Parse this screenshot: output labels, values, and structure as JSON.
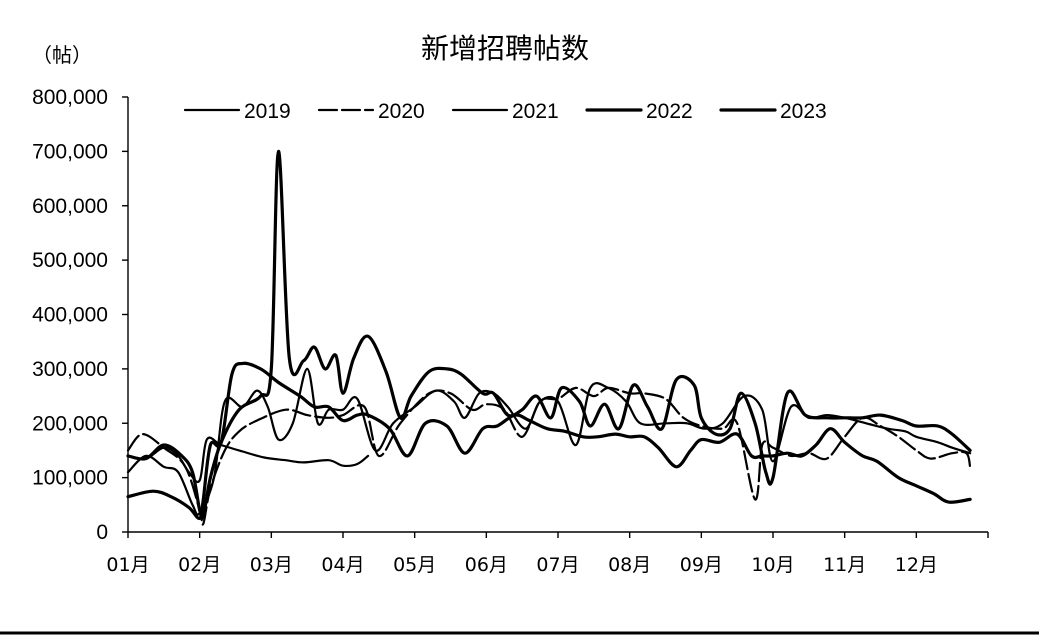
{
  "chart_data": {
    "type": "line",
    "title": "新增招聘帖数",
    "ylabel": "（帖）",
    "xlabel": "",
    "ylim": [
      0,
      800000
    ],
    "yticks": [
      0,
      100000,
      200000,
      300000,
      400000,
      500000,
      600000,
      700000,
      800000
    ],
    "ytick_labels": [
      "0",
      "100,000",
      "200,000",
      "300,000",
      "400,000",
      "500,000",
      "600,000",
      "700,000",
      "800,000"
    ],
    "xlim": [
      0,
      12
    ],
    "months": [
      {
        "label": "01月",
        "x": 0
      },
      {
        "label": "02月",
        "x": 1
      },
      {
        "label": "03月",
        "x": 2
      },
      {
        "label": "04月",
        "x": 3
      },
      {
        "label": "05月",
        "x": 4
      },
      {
        "label": "06月",
        "x": 5
      },
      {
        "label": "07月",
        "x": 6
      },
      {
        "label": "08月",
        "x": 7
      },
      {
        "label": "09月",
        "x": 8
      },
      {
        "label": "10月",
        "x": 9
      },
      {
        "label": "11月",
        "x": 10
      },
      {
        "label": "12月",
        "x": 11
      }
    ],
    "legend_position": "top",
    "grid": false,
    "series": [
      {
        "name": "2019",
        "stroke_width": 2.2,
        "dash": "",
        "points": [
          [
            0.0,
            140000
          ],
          [
            0.25,
            135000
          ],
          [
            0.5,
            155000
          ],
          [
            0.7,
            140000
          ],
          [
            0.85,
            110000
          ],
          [
            1.0,
            95000
          ],
          [
            1.1,
            170000
          ],
          [
            1.3,
            160000
          ],
          [
            1.6,
            148000
          ],
          [
            1.9,
            137000
          ],
          [
            2.2,
            132000
          ],
          [
            2.45,
            128000
          ],
          [
            2.8,
            132000
          ],
          [
            3.0,
            122000
          ],
          [
            3.2,
            125000
          ],
          [
            3.35,
            140000
          ]
        ]
      },
      {
        "name": "2020",
        "stroke_width": 2.2,
        "dash": "18 5",
        "points": [
          [
            0.0,
            150000
          ],
          [
            0.2,
            180000
          ],
          [
            0.5,
            155000
          ],
          [
            0.8,
            120000
          ],
          [
            1.0,
            40000
          ],
          [
            1.05,
            15000
          ],
          [
            1.15,
            80000
          ],
          [
            1.35,
            150000
          ],
          [
            1.55,
            185000
          ],
          [
            1.8,
            205000
          ],
          [
            2.2,
            225000
          ],
          [
            2.5,
            215000
          ],
          [
            2.8,
            210000
          ],
          [
            3.0,
            215000
          ],
          [
            3.3,
            230000
          ],
          [
            3.5,
            140000
          ],
          [
            3.8,
            200000
          ],
          [
            4.2,
            255000
          ],
          [
            4.5,
            255000
          ],
          [
            4.8,
            225000
          ],
          [
            5.0,
            235000
          ],
          [
            5.25,
            225000
          ],
          [
            5.5,
            175000
          ],
          [
            5.75,
            240000
          ],
          [
            6.0,
            245000
          ],
          [
            6.25,
            265000
          ],
          [
            6.5,
            250000
          ],
          [
            6.7,
            265000
          ],
          [
            7.0,
            255000
          ],
          [
            7.2,
            255000
          ],
          [
            7.5,
            245000
          ],
          [
            7.75,
            210000
          ],
          [
            8.0,
            195000
          ],
          [
            8.3,
            190000
          ],
          [
            8.5,
            200000
          ],
          [
            8.75,
            60000
          ],
          [
            8.85,
            160000
          ],
          [
            9.0,
            155000
          ],
          [
            9.25,
            140000
          ],
          [
            9.5,
            145000
          ],
          [
            9.75,
            135000
          ],
          [
            10.0,
            175000
          ],
          [
            10.25,
            210000
          ],
          [
            10.5,
            195000
          ],
          [
            10.75,
            175000
          ],
          [
            11.0,
            150000
          ],
          [
            11.2,
            135000
          ],
          [
            11.5,
            145000
          ],
          [
            11.7,
            145000
          ],
          [
            11.75,
            120000
          ]
        ]
      },
      {
        "name": "2021",
        "stroke_width": 2.2,
        "dash": "",
        "points": [
          [
            0.0,
            110000
          ],
          [
            0.25,
            140000
          ],
          [
            0.5,
            120000
          ],
          [
            0.7,
            110000
          ],
          [
            0.9,
            50000
          ],
          [
            1.0,
            35000
          ],
          [
            1.2,
            100000
          ],
          [
            1.35,
            240000
          ],
          [
            1.6,
            230000
          ],
          [
            1.8,
            260000
          ],
          [
            1.95,
            230000
          ],
          [
            2.1,
            170000
          ],
          [
            2.3,
            200000
          ],
          [
            2.5,
            300000
          ],
          [
            2.65,
            200000
          ],
          [
            2.8,
            225000
          ],
          [
            3.0,
            225000
          ],
          [
            3.2,
            245000
          ],
          [
            3.45,
            150000
          ],
          [
            3.7,
            200000
          ],
          [
            4.0,
            230000
          ],
          [
            4.3,
            260000
          ],
          [
            4.55,
            240000
          ],
          [
            4.7,
            210000
          ],
          [
            4.9,
            255000
          ],
          [
            5.1,
            255000
          ],
          [
            5.3,
            230000
          ],
          [
            5.55,
            190000
          ],
          [
            5.75,
            240000
          ],
          [
            6.0,
            240000
          ],
          [
            6.25,
            160000
          ],
          [
            6.45,
            265000
          ],
          [
            6.7,
            265000
          ],
          [
            6.95,
            240000
          ],
          [
            7.15,
            200000
          ],
          [
            7.5,
            200000
          ],
          [
            7.8,
            200000
          ],
          [
            8.05,
            190000
          ],
          [
            8.3,
            200000
          ],
          [
            8.6,
            250000
          ],
          [
            8.85,
            225000
          ],
          [
            9.0,
            130000
          ],
          [
            9.25,
            230000
          ],
          [
            9.5,
            210000
          ],
          [
            9.75,
            215000
          ],
          [
            10.0,
            210000
          ],
          [
            10.3,
            200000
          ],
          [
            10.6,
            190000
          ],
          [
            10.85,
            185000
          ],
          [
            11.0,
            175000
          ],
          [
            11.3,
            165000
          ],
          [
            11.5,
            155000
          ],
          [
            11.75,
            145000
          ]
        ]
      },
      {
        "name": "2022",
        "stroke_width": 3.2,
        "dash": "",
        "points": [
          [
            0.0,
            140000
          ],
          [
            0.25,
            135000
          ],
          [
            0.5,
            160000
          ],
          [
            0.75,
            140000
          ],
          [
            0.9,
            110000
          ],
          [
            1.0,
            40000
          ],
          [
            1.05,
            30000
          ],
          [
            1.15,
            100000
          ],
          [
            1.3,
            165000
          ],
          [
            1.55,
            225000
          ],
          [
            1.85,
            250000
          ],
          [
            2.0,
            300000
          ],
          [
            2.1,
            700000
          ],
          [
            2.25,
            320000
          ],
          [
            2.45,
            315000
          ],
          [
            2.6,
            340000
          ],
          [
            2.75,
            300000
          ],
          [
            2.9,
            325000
          ],
          [
            3.0,
            255000
          ],
          [
            3.15,
            320000
          ],
          [
            3.35,
            360000
          ],
          [
            3.6,
            295000
          ],
          [
            3.8,
            210000
          ],
          [
            3.95,
            250000
          ],
          [
            4.2,
            295000
          ],
          [
            4.45,
            300000
          ],
          [
            4.65,
            290000
          ],
          [
            4.95,
            255000
          ],
          [
            5.1,
            255000
          ],
          [
            5.3,
            215000
          ],
          [
            5.5,
            225000
          ],
          [
            5.7,
            250000
          ],
          [
            5.9,
            210000
          ],
          [
            6.05,
            265000
          ],
          [
            6.3,
            240000
          ],
          [
            6.45,
            195000
          ],
          [
            6.65,
            235000
          ],
          [
            6.85,
            190000
          ],
          [
            7.05,
            270000
          ],
          [
            7.25,
            230000
          ],
          [
            7.45,
            190000
          ],
          [
            7.65,
            280000
          ],
          [
            7.9,
            270000
          ],
          [
            8.0,
            210000
          ],
          [
            8.2,
            180000
          ],
          [
            8.4,
            190000
          ],
          [
            8.55,
            255000
          ],
          [
            8.75,
            200000
          ],
          [
            8.9,
            110000
          ],
          [
            9.0,
            100000
          ],
          [
            9.2,
            255000
          ],
          [
            9.45,
            215000
          ],
          [
            9.75,
            210000
          ],
          [
            10.0,
            210000
          ],
          [
            10.25,
            210000
          ],
          [
            10.5,
            215000
          ],
          [
            10.8,
            205000
          ],
          [
            11.0,
            195000
          ],
          [
            11.3,
            195000
          ],
          [
            11.5,
            180000
          ],
          [
            11.75,
            150000
          ]
        ]
      },
      {
        "name": "2023",
        "stroke_width": 3.2,
        "dash": "",
        "points": [
          [
            0.0,
            65000
          ],
          [
            0.35,
            75000
          ],
          [
            0.6,
            65000
          ],
          [
            0.85,
            45000
          ],
          [
            1.0,
            25000
          ],
          [
            1.05,
            60000
          ],
          [
            1.15,
            160000
          ],
          [
            1.3,
            165000
          ],
          [
            1.45,
            290000
          ],
          [
            1.6,
            310000
          ],
          [
            1.85,
            300000
          ],
          [
            2.1,
            275000
          ],
          [
            2.4,
            250000
          ],
          [
            2.6,
            230000
          ],
          [
            2.8,
            230000
          ],
          [
            3.0,
            205000
          ],
          [
            3.2,
            215000
          ],
          [
            3.35,
            215000
          ],
          [
            3.65,
            190000
          ],
          [
            3.9,
            140000
          ],
          [
            4.15,
            200000
          ],
          [
            4.45,
            195000
          ],
          [
            4.7,
            145000
          ],
          [
            4.95,
            190000
          ],
          [
            5.15,
            195000
          ],
          [
            5.4,
            215000
          ],
          [
            5.6,
            205000
          ],
          [
            5.85,
            190000
          ],
          [
            6.1,
            185000
          ],
          [
            6.35,
            175000
          ],
          [
            6.55,
            175000
          ],
          [
            6.8,
            180000
          ],
          [
            7.0,
            175000
          ],
          [
            7.2,
            175000
          ],
          [
            7.4,
            155000
          ],
          [
            7.65,
            120000
          ],
          [
            7.85,
            150000
          ],
          [
            8.0,
            170000
          ],
          [
            8.25,
            165000
          ],
          [
            8.5,
            180000
          ],
          [
            8.7,
            140000
          ],
          [
            8.85,
            140000
          ],
          [
            9.0,
            140000
          ],
          [
            9.2,
            145000
          ],
          [
            9.4,
            140000
          ],
          [
            9.6,
            160000
          ],
          [
            9.8,
            190000
          ],
          [
            10.0,
            165000
          ],
          [
            10.25,
            140000
          ],
          [
            10.45,
            130000
          ],
          [
            10.75,
            100000
          ],
          [
            11.0,
            85000
          ],
          [
            11.25,
            70000
          ],
          [
            11.45,
            55000
          ],
          [
            11.75,
            60000
          ]
        ]
      }
    ]
  }
}
